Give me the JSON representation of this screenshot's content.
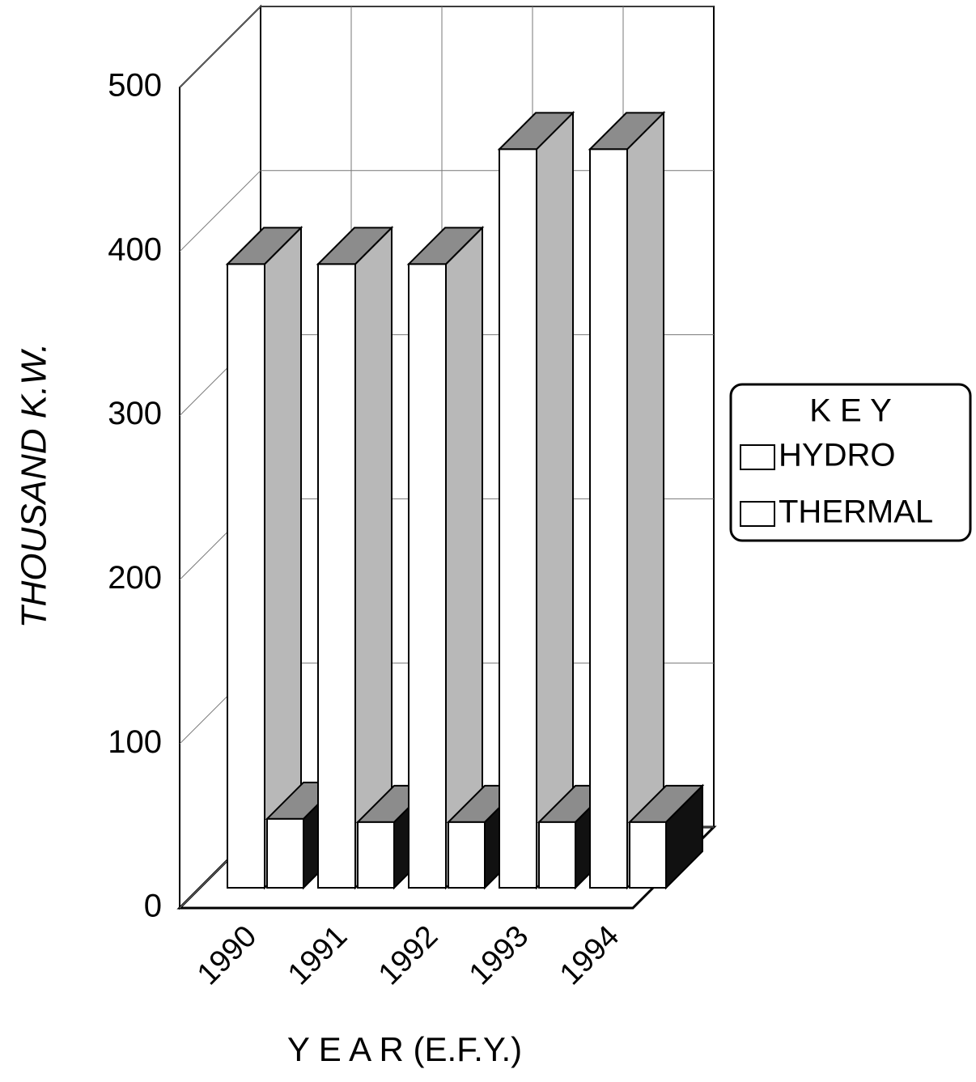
{
  "chart_data": {
    "type": "bar3d",
    "y_label": "THOUSAND K.W.",
    "x_label": "Y E A R (E.F.Y.)",
    "legend_title": "K E Y",
    "categories": [
      "1990",
      "1991",
      "1992",
      "1993",
      "1994"
    ],
    "series": [
      {
        "name": "HYDRO",
        "color": "#ffffff",
        "values": [
          380,
          380,
          380,
          450,
          450
        ]
      },
      {
        "name": "THERMAL",
        "color": "#ffffff",
        "values": [
          42,
          40,
          40,
          40,
          40
        ]
      }
    ],
    "ylim": [
      0,
      500
    ],
    "yticks": [
      0,
      100,
      200,
      300,
      400,
      500
    ],
    "grid": true
  }
}
